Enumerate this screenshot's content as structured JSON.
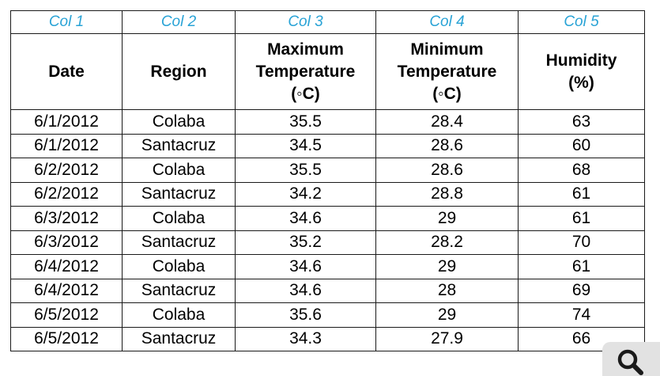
{
  "table": {
    "column_names": [
      "Col 1",
      "Col 2",
      "Col 3",
      "Col 4",
      "Col 5"
    ],
    "headers": [
      [
        "Date"
      ],
      [
        "Region"
      ],
      [
        "Maximum",
        "Temperature",
        "(◦C)"
      ],
      [
        "Minimum",
        "Temperature",
        "(◦C)"
      ],
      [
        "Humidity",
        "(%)"
      ]
    ],
    "rows": [
      [
        "6/1/2012",
        "Colaba",
        "35.5",
        "28.4",
        "63"
      ],
      [
        "6/1/2012",
        "Santacruz",
        "34.5",
        "28.6",
        "60"
      ],
      [
        "6/2/2012",
        "Colaba",
        "35.5",
        "28.6",
        "68"
      ],
      [
        "6/2/2012",
        "Santacruz",
        "34.2",
        "28.8",
        "61"
      ],
      [
        "6/3/2012",
        "Colaba",
        "34.6",
        "29",
        "61"
      ],
      [
        "6/3/2012",
        "Santacruz",
        "35.2",
        "28.2",
        "70"
      ],
      [
        "6/4/2012",
        "Colaba",
        "34.6",
        "29",
        "61"
      ],
      [
        "6/4/2012",
        "Santacruz",
        "34.6",
        "28",
        "69"
      ],
      [
        "6/5/2012",
        "Colaba",
        "35.6",
        "29",
        "74"
      ],
      [
        "6/5/2012",
        "Santacruz",
        "34.3",
        "27.9",
        "66"
      ]
    ]
  },
  "colors": {
    "column_name_text": "#29a3d6",
    "grid_lines": "#1a1a1a",
    "zoom_button_bg": "#e2e2e2"
  },
  "zoom_button": {
    "icon": "magnifier-icon"
  }
}
